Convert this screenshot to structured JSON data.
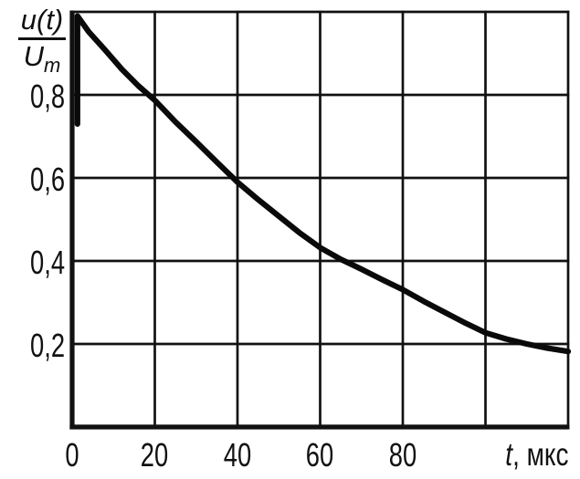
{
  "figure": {
    "background": "#ffffff",
    "ink": "#111111"
  },
  "axes": {
    "y_label": {
      "numerator": "u(t)",
      "denominator_main": "U",
      "denominator_sub": "m"
    },
    "x_label": {
      "symbol": "t",
      "rest": ", мкс"
    },
    "y_tick_labels": [
      "0,8",
      "0,6",
      "0,4",
      "0,2"
    ],
    "x_tick_labels": [
      "0",
      "20",
      "40",
      "60",
      "80"
    ]
  },
  "chart_data": {
    "type": "line",
    "title": "",
    "xlabel": "t, мкс",
    "ylabel": "u(t)/Um",
    "xlim": [
      0,
      120
    ],
    "ylim": [
      0,
      1
    ],
    "x_tick_values": [
      0,
      20,
      40,
      60,
      80
    ],
    "y_tick_values": [
      0.2,
      0.4,
      0.6,
      0.8
    ],
    "x_grid_values": [
      0,
      20,
      40,
      60,
      80,
      100,
      120
    ],
    "y_grid_values": [
      0,
      0.2,
      0.4,
      0.6,
      0.8,
      1.0
    ],
    "grid": true,
    "legend_position": "none",
    "line_color": "#0a0a0a",
    "series": [
      {
        "name": "u(t)/Um",
        "x": [
          0,
          0,
          4,
          8,
          12,
          16,
          20,
          25,
          30,
          35,
          40,
          45,
          50,
          55,
          60,
          65,
          70,
          75,
          80,
          85,
          90,
          95,
          100,
          105,
          110,
          115,
          120
        ],
        "y": [
          0.73,
          0.99,
          0.952,
          0.908,
          0.862,
          0.822,
          0.787,
          0.735,
          0.687,
          0.638,
          0.59,
          0.548,
          0.508,
          0.468,
          0.432,
          0.404,
          0.38,
          0.355,
          0.331,
          0.303,
          0.277,
          0.251,
          0.227,
          0.212,
          0.2,
          0.19,
          0.182
        ]
      }
    ]
  }
}
